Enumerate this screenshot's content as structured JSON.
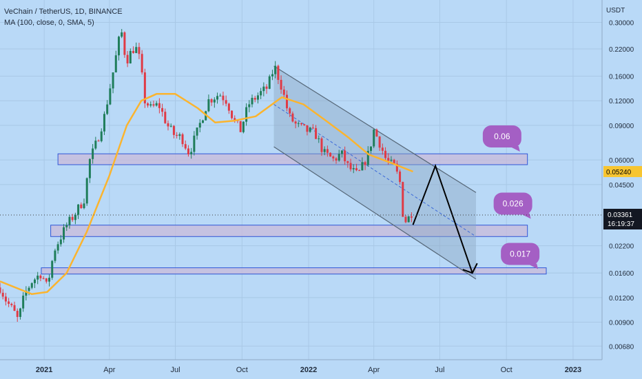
{
  "header": {
    "symbol_line": "VeChain / TetherUS, 1D, BINANCE",
    "indicator_line": "MA (100, close, 0, SMA, 5)"
  },
  "axis": {
    "currency": "USDT"
  },
  "colors": {
    "background": "#b9d9f7",
    "up_candle": "#1f7d5a",
    "down_candle": "#e03a45",
    "ma_line": "#fbb42e",
    "channel": "#556677",
    "zone_border": "#2f56d6",
    "zone_fill": "#c9b9d9",
    "bubble": "#a45fc4",
    "price_tag": "#131722",
    "ma_tag": "#f7c531"
  },
  "chart_data": {
    "type": "candlestick",
    "title": "VeChain / TetherUS, 1D, BINANCE",
    "y_scale": "log",
    "ylim": [
      0.0058,
      0.39
    ],
    "xlim": [
      "2020-11-01",
      "2023-02-10"
    ],
    "y_ticks": [
      "0.30000",
      "0.22000",
      "0.16000",
      "0.12000",
      "0.09000",
      "0.06000",
      "0.04500",
      "0.03361",
      "0.02200",
      "0.01600",
      "0.01200",
      "0.00900",
      "0.00680"
    ],
    "x_ticks": [
      {
        "label": "2021",
        "date": "2021-01-01"
      },
      {
        "label": "Apr",
        "date": "2021-04-01"
      },
      {
        "label": "Jul",
        "date": "2021-07-01"
      },
      {
        "label": "Oct",
        "date": "2021-10-01"
      },
      {
        "label": "2022",
        "date": "2022-01-01"
      },
      {
        "label": "Apr",
        "date": "2022-04-01"
      },
      {
        "label": "Jul",
        "date": "2022-07-01"
      },
      {
        "label": "Oct",
        "date": "2022-10-01"
      },
      {
        "label": "2023",
        "date": "2023-01-01"
      }
    ],
    "price_path": [
      [
        "2020-11-01",
        0.0135
      ],
      [
        "2020-11-10",
        0.0115
      ],
      [
        "2020-11-20",
        0.0102
      ],
      [
        "2020-11-26",
        0.0092
      ],
      [
        "2020-12-05",
        0.0125
      ],
      [
        "2020-12-15",
        0.0145
      ],
      [
        "2020-12-28",
        0.016
      ],
      [
        "2021-01-05",
        0.0135
      ],
      [
        "2021-01-15",
        0.021
      ],
      [
        "2021-02-01",
        0.028
      ],
      [
        "2021-02-10",
        0.031
      ],
      [
        "2021-02-25",
        0.038
      ],
      [
        "2021-03-05",
        0.06
      ],
      [
        "2021-03-15",
        0.075
      ],
      [
        "2021-03-25",
        0.1
      ],
      [
        "2021-04-05",
        0.16
      ],
      [
        "2021-04-12",
        0.22
      ],
      [
        "2021-04-17",
        0.28
      ],
      [
        "2021-04-24",
        0.19
      ],
      [
        "2021-05-03",
        0.22
      ],
      [
        "2021-05-10",
        0.22
      ],
      [
        "2021-05-15",
        0.17
      ],
      [
        "2021-05-20",
        0.12
      ],
      [
        "2021-05-28",
        0.11
      ],
      [
        "2021-06-08",
        0.115
      ],
      [
        "2021-06-20",
        0.09
      ],
      [
        "2021-06-30",
        0.08
      ],
      [
        "2021-07-10",
        0.078
      ],
      [
        "2021-07-20",
        0.065
      ],
      [
        "2021-08-01",
        0.085
      ],
      [
        "2021-08-15",
        0.12
      ],
      [
        "2021-08-31",
        0.13
      ],
      [
        "2021-09-10",
        0.12
      ],
      [
        "2021-09-20",
        0.095
      ],
      [
        "2021-09-29",
        0.085
      ],
      [
        "2021-10-10",
        0.115
      ],
      [
        "2021-10-25",
        0.13
      ],
      [
        "2021-11-05",
        0.14
      ],
      [
        "2021-11-15",
        0.18
      ],
      [
        "2021-11-25",
        0.14
      ],
      [
        "2021-12-05",
        0.1
      ],
      [
        "2021-12-15",
        0.09
      ],
      [
        "2021-12-28",
        0.085
      ],
      [
        "2022-01-10",
        0.082
      ],
      [
        "2022-01-22",
        0.065
      ],
      [
        "2022-02-05",
        0.06
      ],
      [
        "2022-02-15",
        0.065
      ],
      [
        "2022-02-25",
        0.055
      ],
      [
        "2022-03-10",
        0.05
      ],
      [
        "2022-03-25",
        0.065
      ],
      [
        "2022-04-01",
        0.085
      ],
      [
        "2022-04-08",
        0.075
      ],
      [
        "2022-04-18",
        0.06
      ],
      [
        "2022-04-30",
        0.055
      ],
      [
        "2022-05-08",
        0.045
      ],
      [
        "2022-05-12",
        0.029
      ],
      [
        "2022-05-18",
        0.03
      ],
      [
        "2022-05-25",
        0.0336
      ]
    ],
    "moving_average": {
      "label": "MA (100, close, 0, SMA, 5)",
      "points": [
        [
          "2020-11-01",
          0.0145
        ],
        [
          "2020-12-15",
          0.0125
        ],
        [
          "2021-01-05",
          0.0128
        ],
        [
          "2021-02-01",
          0.016
        ],
        [
          "2021-03-01",
          0.026
        ],
        [
          "2021-04-01",
          0.05
        ],
        [
          "2021-04-25",
          0.09
        ],
        [
          "2021-05-15",
          0.12
        ],
        [
          "2021-06-05",
          0.13
        ],
        [
          "2021-07-01",
          0.13
        ],
        [
          "2021-08-01",
          0.11
        ],
        [
          "2021-08-25",
          0.093
        ],
        [
          "2021-09-20",
          0.095
        ],
        [
          "2021-10-20",
          0.1
        ],
        [
          "2021-11-25",
          0.125
        ],
        [
          "2021-12-25",
          0.115
        ],
        [
          "2022-01-25",
          0.095
        ],
        [
          "2022-02-25",
          0.078
        ],
        [
          "2022-03-25",
          0.064
        ],
        [
          "2022-04-25",
          0.058
        ],
        [
          "2022-05-25",
          0.0524
        ]
      ]
    },
    "channel": {
      "upper": [
        [
          "2021-11-14",
          0.18
        ],
        [
          "2022-08-20",
          0.041
        ]
      ],
      "lower": [
        [
          "2021-11-14",
          0.07
        ],
        [
          "2022-08-20",
          0.0149
        ]
      ],
      "midline": [
        [
          "2021-11-14",
          0.115
        ],
        [
          "2022-08-20",
          0.0245
        ]
      ]
    },
    "projection_path": [
      [
        "2022-05-25",
        0.0281
      ],
      [
        "2022-06-25",
        0.056
      ],
      [
        "2022-08-15",
        0.016
      ]
    ],
    "zones": [
      {
        "y_range": [
          0.0568,
          0.0645
        ],
        "start": "2021-01-20",
        "end": "2022-10-30"
      },
      {
        "y_range": [
          0.0245,
          0.028
        ],
        "start": "2021-01-10",
        "end": "2022-10-30"
      },
      {
        "y_range": [
          0.0158,
          0.017
        ],
        "start": "2020-12-28",
        "end": "2022-11-25"
      }
    ],
    "annotations": [
      {
        "text": "0.06",
        "at": [
          "2022-09-25",
          0.079
        ]
      },
      {
        "text": "0.026",
        "at": [
          "2022-10-10",
          0.036
        ]
      },
      {
        "text": "0.017",
        "at": [
          "2022-10-20",
          0.02
        ]
      }
    ],
    "current_price": {
      "value": "0.03361",
      "countdown": "16:19:37"
    },
    "ma_value": "0.05240"
  }
}
